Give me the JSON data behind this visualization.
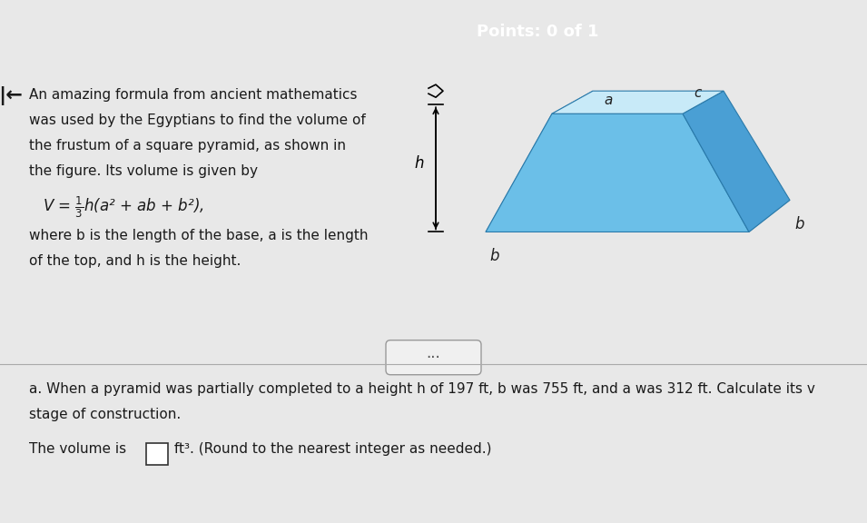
{
  "bg_color_top": "#1a9dc4",
  "bg_color_main": "#e8e8e8",
  "bg_color_lower": "#d4d4d4",
  "header_text": "Points: 0 of 1",
  "arrow_left": "⇦",
  "para1_line1": "An amazing formula from ancient mathematics",
  "para1_line2": "was used by the Egyptians to find the volume of",
  "para1_line3": "the frustum of a square pyramid, as shown in",
  "para1_line4": "the figure. Its volume is given by",
  "formula": "V = ¹⁄₃h(a² + ab + b²),",
  "para2_line1": "where b is the length of the base, a is the length",
  "para2_line2": "of the top, and h is the height.",
  "divider_dots": "...",
  "section_a_line1": "a. When a pyramid was partially completed to a height h of 197 ft, b was 755 ft, and a was 312 ft. Calculate its v",
  "section_a_line2": "stage of construction.",
  "answer_line": "The volume is □ ft³. (Round to the nearest integer as needed.)",
  "frustum_color_top": "#87ceeb",
  "frustum_color_face": "#5bb8e8",
  "frustum_color_left": "#4aa8d8",
  "frustum_color_shadow": "#3898c8",
  "label_a": "a",
  "label_b": "b",
  "label_c": "c",
  "label_h": "h",
  "text_color": "#1a1a1a",
  "formula_font_size": 13,
  "body_font_size": 11,
  "section_font_size": 11
}
